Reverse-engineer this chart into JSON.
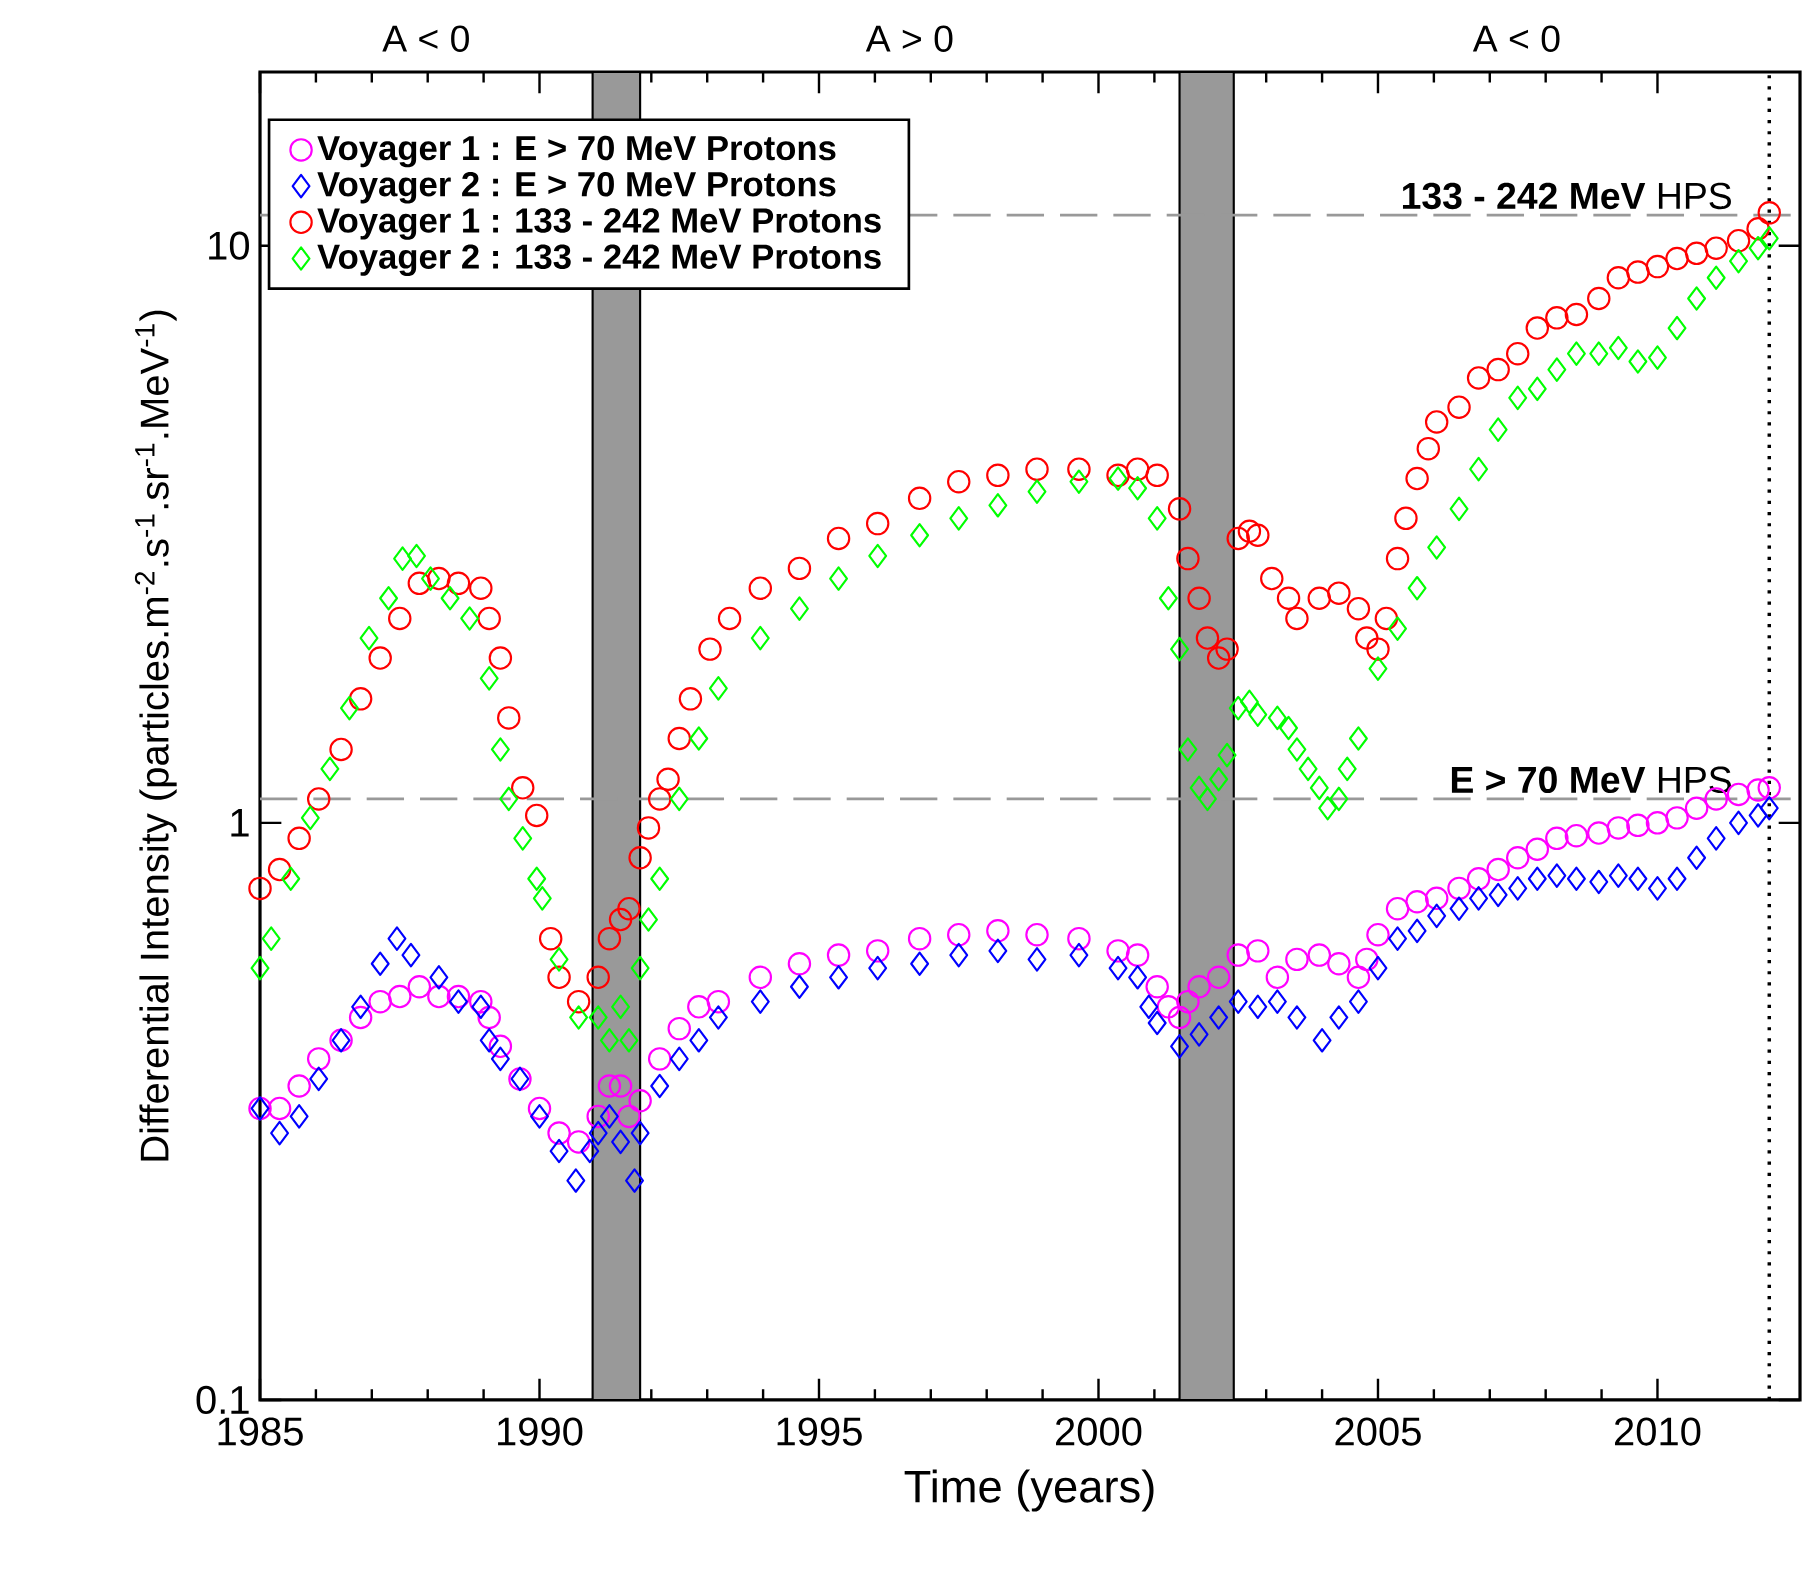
{
  "chart_data": {
    "type": "scatter",
    "xlabel": "Time (years)",
    "ylabel": "Differential Intensity (particles.m$^{-2}$.s$^{-1}$.sr$^{-1}$.MeV$^{-1}$)",
    "xlim": [
      1985,
      2012.55
    ],
    "xticks": [
      1985,
      1990,
      1995,
      2000,
      2005,
      2010
    ],
    "ylim": [
      0.1,
      20
    ],
    "yticks": [
      0.1,
      1,
      10
    ],
    "log": "y",
    "legend": "top left",
    "series": [
      {
        "name": "Voyager 1 : E > 70 MeV Protons",
        "color": "#ff00ff",
        "marker": "circle",
        "x": [
          1985.0,
          1985.35,
          1985.7,
          1986.05,
          1986.45,
          1986.8,
          1987.15,
          1987.5,
          1987.85,
          1988.2,
          1988.55,
          1988.95,
          1989.1,
          1989.3,
          1989.65,
          1990.0,
          1990.35,
          1990.7,
          1991.05,
          1991.25,
          1991.45,
          1991.6,
          1991.8,
          1992.15,
          1992.5,
          1992.85,
          1993.2,
          1993.95,
          1994.65,
          1995.35,
          1996.05,
          1996.8,
          1997.5,
          1998.2,
          1998.9,
          1999.65,
          2000.35,
          2000.7,
          2001.05,
          2001.25,
          2001.45,
          2001.6,
          2001.8,
          2002.15,
          2002.5,
          2002.85,
          2003.2,
          2003.55,
          2003.95,
          2004.3,
          2004.65,
          2004.8,
          2005.0,
          2005.35,
          2005.7,
          2006.05,
          2006.45,
          2006.8,
          2007.15,
          2007.5,
          2007.85,
          2008.2,
          2008.55,
          2008.95,
          2009.3,
          2009.65,
          2010.0,
          2010.35,
          2010.7,
          2011.05,
          2011.45,
          2011.8,
          2012.0
        ],
        "values": [
          0.32,
          0.32,
          0.35,
          0.39,
          0.42,
          0.46,
          0.49,
          0.5,
          0.52,
          0.5,
          0.5,
          0.49,
          0.46,
          0.41,
          0.36,
          0.32,
          0.29,
          0.28,
          0.31,
          0.35,
          0.35,
          0.31,
          0.33,
          0.39,
          0.44,
          0.48,
          0.49,
          0.54,
          0.57,
          0.59,
          0.6,
          0.63,
          0.64,
          0.65,
          0.64,
          0.63,
          0.6,
          0.59,
          0.52,
          0.48,
          0.46,
          0.49,
          0.52,
          0.54,
          0.59,
          0.6,
          0.54,
          0.58,
          0.59,
          0.57,
          0.54,
          0.58,
          0.64,
          0.71,
          0.73,
          0.74,
          0.77,
          0.8,
          0.83,
          0.87,
          0.9,
          0.94,
          0.95,
          0.96,
          0.98,
          0.99,
          1.0,
          1.02,
          1.06,
          1.1,
          1.12,
          1.14,
          1.15
        ]
      },
      {
        "name": "Voyager 2 : E > 70 MeV Protons",
        "color": "#0000ff",
        "marker": "diamond",
        "x": [
          1985.0,
          1985.35,
          1985.7,
          1986.05,
          1986.45,
          1986.8,
          1987.15,
          1987.45,
          1987.7,
          1988.2,
          1988.55,
          1988.95,
          1989.1,
          1989.3,
          1989.65,
          1990.0,
          1990.35,
          1990.65,
          1990.9,
          1991.05,
          1991.25,
          1991.45,
          1991.7,
          1991.8,
          1992.15,
          1992.5,
          1992.85,
          1993.2,
          1993.95,
          1994.65,
          1995.35,
          1996.05,
          1996.8,
          1997.5,
          1998.2,
          1998.9,
          1999.65,
          2000.35,
          2000.7,
          2000.9,
          2001.05,
          2001.45,
          2001.8,
          2002.15,
          2002.5,
          2002.85,
          2003.2,
          2003.55,
          2004.0,
          2004.3,
          2004.65,
          2005.0,
          2005.35,
          2005.7,
          2006.05,
          2006.45,
          2006.8,
          2007.15,
          2007.5,
          2007.85,
          2008.2,
          2008.55,
          2008.95,
          2009.3,
          2009.65,
          2010.0,
          2010.35,
          2010.7,
          2011.05,
          2011.45,
          2011.8,
          2012.0
        ],
        "values": [
          0.32,
          0.29,
          0.31,
          0.36,
          0.42,
          0.48,
          0.57,
          0.63,
          0.59,
          0.54,
          0.49,
          0.48,
          0.42,
          0.39,
          0.36,
          0.31,
          0.27,
          0.24,
          0.27,
          0.29,
          0.31,
          0.28,
          0.24,
          0.29,
          0.35,
          0.39,
          0.42,
          0.46,
          0.49,
          0.52,
          0.54,
          0.56,
          0.57,
          0.59,
          0.6,
          0.58,
          0.59,
          0.56,
          0.54,
          0.48,
          0.45,
          0.41,
          0.43,
          0.46,
          0.49,
          0.48,
          0.49,
          0.46,
          0.42,
          0.46,
          0.49,
          0.56,
          0.63,
          0.65,
          0.69,
          0.71,
          0.74,
          0.75,
          0.77,
          0.8,
          0.81,
          0.8,
          0.79,
          0.81,
          0.8,
          0.77,
          0.8,
          0.87,
          0.94,
          1.0,
          1.03,
          1.06
        ]
      },
      {
        "name": "Voyager 1 : 133 - 242 MeV Protons",
        "color": "#ff0000",
        "marker": "circle",
        "x": [
          1985.0,
          1985.35,
          1985.7,
          1986.05,
          1986.45,
          1986.8,
          1987.15,
          1987.5,
          1987.85,
          1988.2,
          1988.55,
          1988.95,
          1989.1,
          1989.3,
          1989.45,
          1989.7,
          1989.95,
          1990.2,
          1990.35,
          1990.7,
          1991.05,
          1991.25,
          1991.45,
          1991.6,
          1991.8,
          1991.95,
          1992.15,
          1992.3,
          1992.5,
          1992.7,
          1993.05,
          1993.4,
          1993.95,
          1994.65,
          1995.35,
          1996.05,
          1996.8,
          1997.5,
          1998.2,
          1998.9,
          1999.65,
          2000.35,
          2000.7,
          2001.05,
          2001.45,
          2001.6,
          2001.8,
          2001.95,
          2002.15,
          2002.3,
          2002.5,
          2002.7,
          2002.85,
          2003.1,
          2003.4,
          2003.55,
          2003.95,
          2004.3,
          2004.65,
          2004.8,
          2005.0,
          2005.15,
          2005.35,
          2005.5,
          2005.7,
          2005.9,
          2006.05,
          2006.45,
          2006.8,
          2007.15,
          2007.5,
          2007.85,
          2008.2,
          2008.55,
          2008.95,
          2009.3,
          2009.65,
          2010.0,
          2010.35,
          2010.7,
          2011.05,
          2011.45,
          2011.8,
          2012.0
        ],
        "values": [
          0.77,
          0.83,
          0.94,
          1.1,
          1.34,
          1.64,
          1.93,
          2.26,
          2.6,
          2.65,
          2.6,
          2.55,
          2.26,
          1.93,
          1.52,
          1.15,
          1.03,
          0.63,
          0.54,
          0.49,
          0.54,
          0.63,
          0.68,
          0.71,
          0.87,
          0.98,
          1.1,
          1.19,
          1.4,
          1.64,
          2.0,
          2.26,
          2.55,
          2.76,
          3.11,
          3.3,
          3.65,
          3.9,
          4.0,
          4.1,
          4.1,
          4.0,
          4.1,
          4.0,
          3.5,
          2.87,
          2.45,
          2.09,
          1.93,
          2.0,
          3.11,
          3.2,
          3.15,
          2.65,
          2.45,
          2.26,
          2.45,
          2.5,
          2.35,
          2.09,
          2.0,
          2.26,
          2.87,
          3.37,
          3.95,
          4.45,
          4.95,
          5.25,
          5.9,
          6.1,
          6.5,
          7.2,
          7.5,
          7.6,
          8.1,
          8.8,
          9.0,
          9.2,
          9.5,
          9.7,
          9.9,
          10.2,
          10.7,
          11.4
        ]
      },
      {
        "name": "Voyager 2 : 133 - 242 MeV Protons",
        "color": "#00ff00",
        "marker": "diamond",
        "x": [
          1985.0,
          1985.2,
          1985.55,
          1985.9,
          1986.25,
          1986.6,
          1986.95,
          1987.3,
          1987.55,
          1987.8,
          1988.05,
          1988.4,
          1988.75,
          1989.1,
          1989.3,
          1989.45,
          1989.7,
          1989.95,
          1990.05,
          1990.35,
          1990.7,
          1991.05,
          1991.25,
          1991.45,
          1991.6,
          1991.8,
          1991.95,
          1992.15,
          1992.5,
          1992.85,
          1993.2,
          1993.95,
          1994.65,
          1995.35,
          1996.05,
          1996.8,
          1997.5,
          1998.2,
          1998.9,
          1999.65,
          2000.35,
          2000.7,
          2001.05,
          2001.25,
          2001.45,
          2001.6,
          2001.8,
          2001.95,
          2002.15,
          2002.3,
          2002.5,
          2002.7,
          2002.85,
          2003.2,
          2003.4,
          2003.55,
          2003.75,
          2003.95,
          2004.1,
          2004.3,
          2004.45,
          2004.65,
          2005.0,
          2005.35,
          2005.7,
          2006.05,
          2006.45,
          2006.8,
          2007.15,
          2007.5,
          2007.85,
          2008.2,
          2008.55,
          2008.95,
          2009.3,
          2009.65,
          2010.0,
          2010.35,
          2010.7,
          2011.05,
          2011.45,
          2011.8,
          2012.0
        ],
        "values": [
          0.56,
          0.63,
          0.8,
          1.02,
          1.24,
          1.58,
          2.09,
          2.45,
          2.87,
          2.9,
          2.65,
          2.45,
          2.26,
          1.78,
          1.34,
          1.1,
          0.94,
          0.8,
          0.74,
          0.58,
          0.46,
          0.46,
          0.42,
          0.48,
          0.42,
          0.56,
          0.68,
          0.8,
          1.1,
          1.4,
          1.71,
          2.09,
          2.35,
          2.65,
          2.9,
          3.15,
          3.37,
          3.55,
          3.75,
          3.9,
          3.95,
          3.8,
          3.37,
          2.45,
          2.0,
          1.34,
          1.15,
          1.1,
          1.19,
          1.31,
          1.58,
          1.62,
          1.54,
          1.52,
          1.46,
          1.34,
          1.24,
          1.15,
          1.06,
          1.1,
          1.24,
          1.4,
          1.85,
          2.17,
          2.55,
          3.0,
          3.5,
          4.1,
          4.8,
          5.45,
          5.65,
          6.1,
          6.5,
          6.5,
          6.65,
          6.3,
          6.4,
          7.2,
          8.1,
          8.8,
          9.4,
          9.9,
          10.3
        ]
      }
    ],
    "ref_lines": [
      {
        "axis": "y",
        "value": 1.1,
        "label": "**E > 70 MeV** HPS",
        "color": "#999999",
        "line_style": "dashed"
      },
      {
        "axis": "y",
        "value": 11.3,
        "label": "**133 - 242 MeV** HPS",
        "color": "#999999",
        "line_style": "dashed"
      },
      {
        "axis": "x",
        "value": 2012,
        "color": "#000000",
        "line_style": "dotted"
      }
    ],
    "bands": [
      {
        "axis": "x",
        "from": 1990.95,
        "to": 1991.8,
        "color": "#999999"
      },
      {
        "axis": "x",
        "from": 2001.45,
        "to": 2002.42,
        "color": "#999999"
      }
    ],
    "annotations": [
      "A < 0",
      "A > 0",
      "A < 0"
    ]
  }
}
